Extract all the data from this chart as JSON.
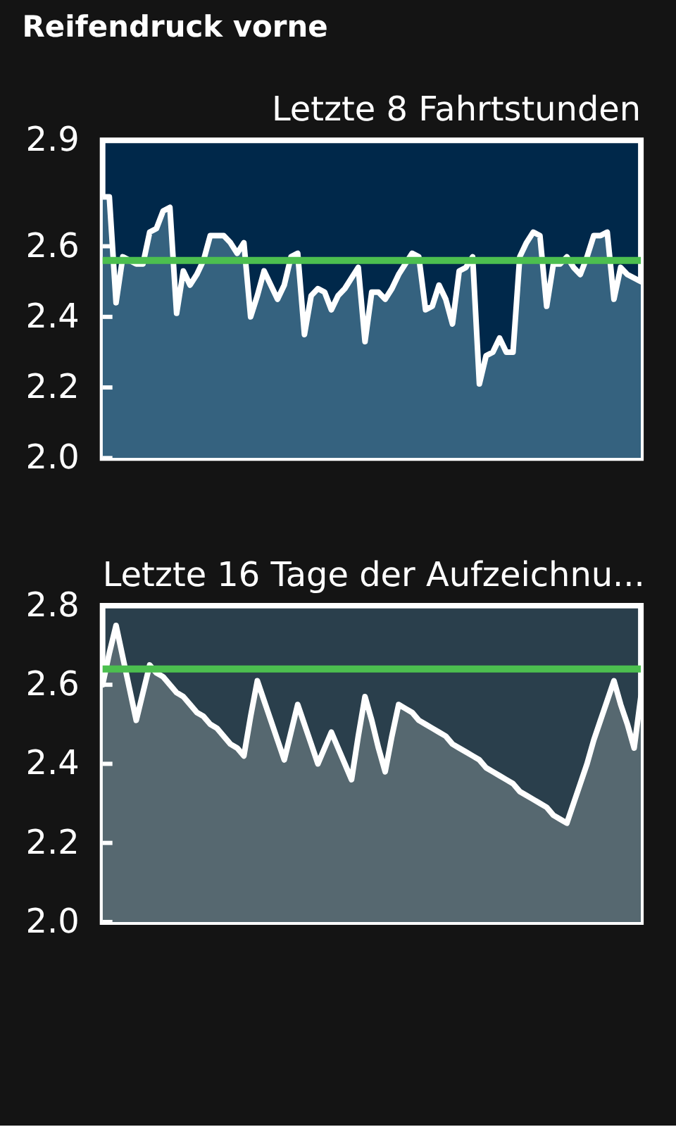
{
  "chart_data": [
    {
      "type": "area",
      "title": "Reifendruck vorne",
      "subtitle": "Letzte 8 Fahrtstunden",
      "categories": [
        null,
        null,
        null,
        null,
        null,
        null,
        null,
        null,
        null,
        null,
        null,
        null,
        null,
        null,
        null,
        null,
        null,
        null,
        null,
        null,
        null,
        null,
        null,
        null,
        null,
        null,
        null,
        null,
        null,
        null,
        null,
        null,
        null,
        null,
        null,
        null,
        null,
        null,
        null,
        null,
        null,
        null,
        null,
        null,
        null,
        null,
        null,
        null,
        null,
        null,
        null,
        null,
        null,
        null,
        null,
        null,
        null,
        null,
        null,
        null,
        null,
        null,
        null,
        null,
        null,
        null,
        null,
        null,
        null,
        null,
        null,
        null,
        null,
        null,
        null,
        null,
        null,
        null,
        null,
        null,
        null
      ],
      "series": [
        {
          "color": "#35627f",
          "values": [
            2.74,
            2.74,
            2.44,
            2.57,
            2.56,
            2.55,
            2.55,
            2.64,
            2.65,
            2.7,
            2.71,
            2.41,
            2.53,
            2.49,
            2.52,
            2.56,
            2.63,
            2.63,
            2.63,
            2.61,
            2.58,
            2.61,
            2.4,
            2.46,
            2.53,
            2.49,
            2.45,
            2.49,
            2.57,
            2.58,
            2.35,
            2.46,
            2.48,
            2.47,
            2.42,
            2.46,
            2.48,
            2.51,
            2.54,
            2.33,
            2.47,
            2.47,
            2.45,
            2.48,
            2.52,
            2.55,
            2.58,
            2.57,
            2.42,
            2.43,
            2.49,
            2.45,
            2.38,
            2.53,
            2.54,
            2.57,
            2.21,
            2.29,
            2.3,
            2.34,
            2.3,
            2.3,
            2.57,
            2.61,
            2.64,
            2.63,
            2.43,
            2.55,
            2.55,
            2.57,
            2.54,
            2.52,
            2.57,
            2.63,
            2.63,
            2.64,
            2.45,
            2.54,
            2.52,
            2.51,
            2.5
          ]
        }
      ],
      "ylim": [
        2.0,
        2.9
      ],
      "yticks": [
        {
          "value": 2.0,
          "label": "2.0"
        },
        2.2,
        2.4,
        2.6,
        2.9
      ],
      "ref_lines": [
        {
          "axis": "y",
          "value": 2.56,
          "color": "#4cbf4f"
        }
      ],
      "tick_labels": "y"
    },
    {
      "type": "area",
      "subtitle": "Letzte 16 Tage der Aufzeichnu...",
      "categories": [
        null,
        null,
        null,
        null,
        null,
        null,
        null,
        null,
        null,
        null,
        null,
        null,
        null,
        null,
        null,
        null,
        null,
        null,
        null,
        null,
        null,
        null,
        null,
        null,
        null,
        null,
        null,
        null,
        null,
        null,
        null,
        null,
        null,
        null,
        null,
        null,
        null,
        null,
        null,
        null,
        null,
        null,
        null,
        null,
        null,
        null,
        null,
        null,
        null,
        null,
        null,
        null,
        null,
        null,
        null,
        null,
        null,
        null,
        null,
        null,
        null,
        null,
        null,
        null,
        null,
        null,
        null,
        null,
        null,
        null,
        null,
        null,
        null,
        null,
        null,
        null,
        null,
        null,
        null,
        null,
        null
      ],
      "series": [
        {
          "color": "#566870",
          "values": [
            2.6,
            2.68,
            2.75,
            2.67,
            2.59,
            2.51,
            2.58,
            2.65,
            2.63,
            2.62,
            2.6,
            2.58,
            2.57,
            2.55,
            2.53,
            2.52,
            2.5,
            2.49,
            2.47,
            2.45,
            2.44,
            2.42,
            2.52,
            2.61,
            2.56,
            2.51,
            2.46,
            2.41,
            2.48,
            2.55,
            2.5,
            2.45,
            2.4,
            2.44,
            2.48,
            2.44,
            2.4,
            2.36,
            2.47,
            2.57,
            2.51,
            2.44,
            2.38,
            2.47,
            2.55,
            2.54,
            2.53,
            2.51,
            2.5,
            2.49,
            2.48,
            2.47,
            2.45,
            2.44,
            2.43,
            2.42,
            2.41,
            2.39,
            2.38,
            2.37,
            2.36,
            2.35,
            2.33,
            2.32,
            2.31,
            2.3,
            2.29,
            2.27,
            2.26,
            2.25,
            2.3,
            2.35,
            2.4,
            2.46,
            2.51,
            2.56,
            2.61,
            2.55,
            2.5,
            2.44,
            2.57
          ]
        }
      ],
      "ylim": [
        2.0,
        2.8
      ],
      "yticks": [
        {
          "value": 2.0,
          "label": "2.0"
        },
        2.2,
        2.4,
        2.6,
        2.8
      ],
      "ref_lines": [
        {
          "axis": "y",
          "value": 2.64,
          "color": "#4cbf4f"
        }
      ],
      "tick_labels": "y"
    }
  ]
}
